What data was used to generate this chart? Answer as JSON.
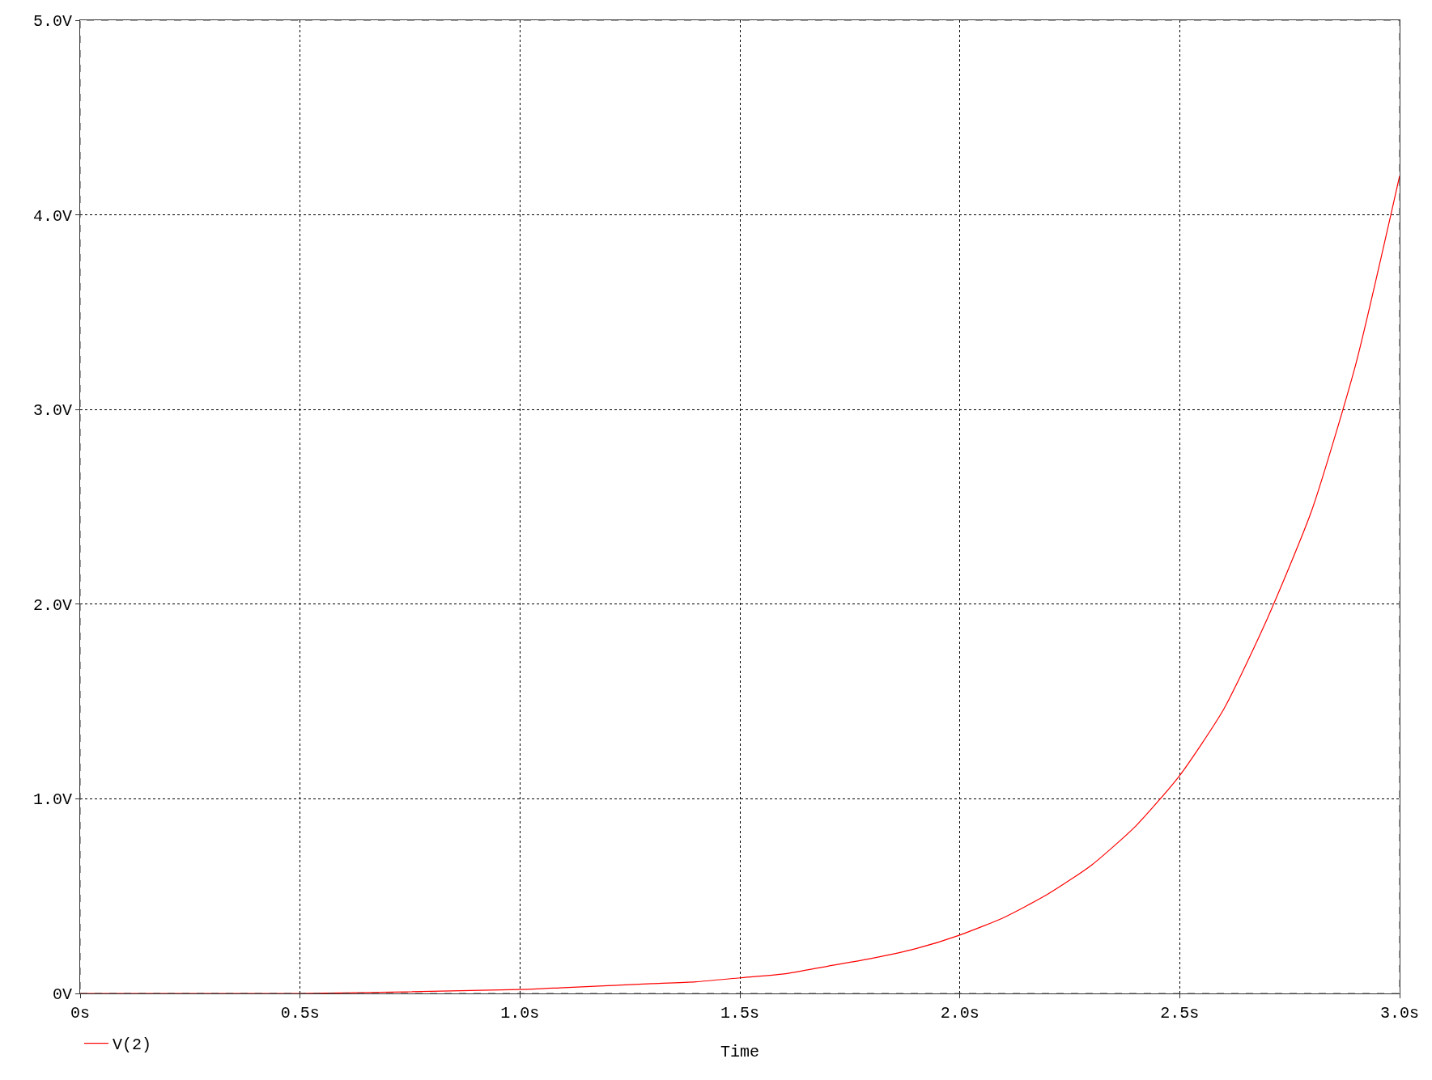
{
  "chart_data": {
    "type": "line",
    "xlabel": "Time",
    "x": [
      0,
      0.5,
      1.0,
      1.1,
      1.2,
      1.3,
      1.4,
      1.5,
      1.6,
      1.7,
      1.8,
      1.9,
      2.0,
      2.1,
      2.2,
      2.3,
      2.4,
      2.5,
      2.6,
      2.7,
      2.8,
      2.9,
      3.0
    ],
    "series": [
      {
        "name": "V(2)",
        "color": "#ff0000",
        "values": [
          0,
          0,
          0.02,
          0.03,
          0.04,
          0.05,
          0.06,
          0.08,
          0.1,
          0.14,
          0.18,
          0.23,
          0.3,
          0.39,
          0.51,
          0.66,
          0.86,
          1.12,
          1.46,
          1.93,
          2.48,
          3.23,
          4.2
        ]
      }
    ],
    "xlim": [
      0,
      3.0
    ],
    "xticks": [
      {
        "value": 0,
        "label": "0s"
      },
      {
        "value": 0.5,
        "label": "0.5s"
      },
      {
        "value": 1.0,
        "label": "1.0s"
      },
      {
        "value": 1.5,
        "label": "1.5s"
      },
      {
        "value": 2.0,
        "label": "2.0s"
      },
      {
        "value": 2.5,
        "label": "2.5s"
      },
      {
        "value": 3.0,
        "label": "3.0s"
      }
    ],
    "ylim": [
      0,
      5.0
    ],
    "yticks": [
      {
        "value": 0,
        "label": "0V"
      },
      {
        "value": 1.0,
        "label": "1.0V"
      },
      {
        "value": 2.0,
        "label": "2.0V"
      },
      {
        "value": 3.0,
        "label": "3.0V"
      },
      {
        "value": 4.0,
        "label": "4.0V"
      },
      {
        "value": 5.0,
        "label": "5.0V"
      }
    ],
    "grid": true,
    "legend": "bottom left",
    "line_style": "solid"
  }
}
